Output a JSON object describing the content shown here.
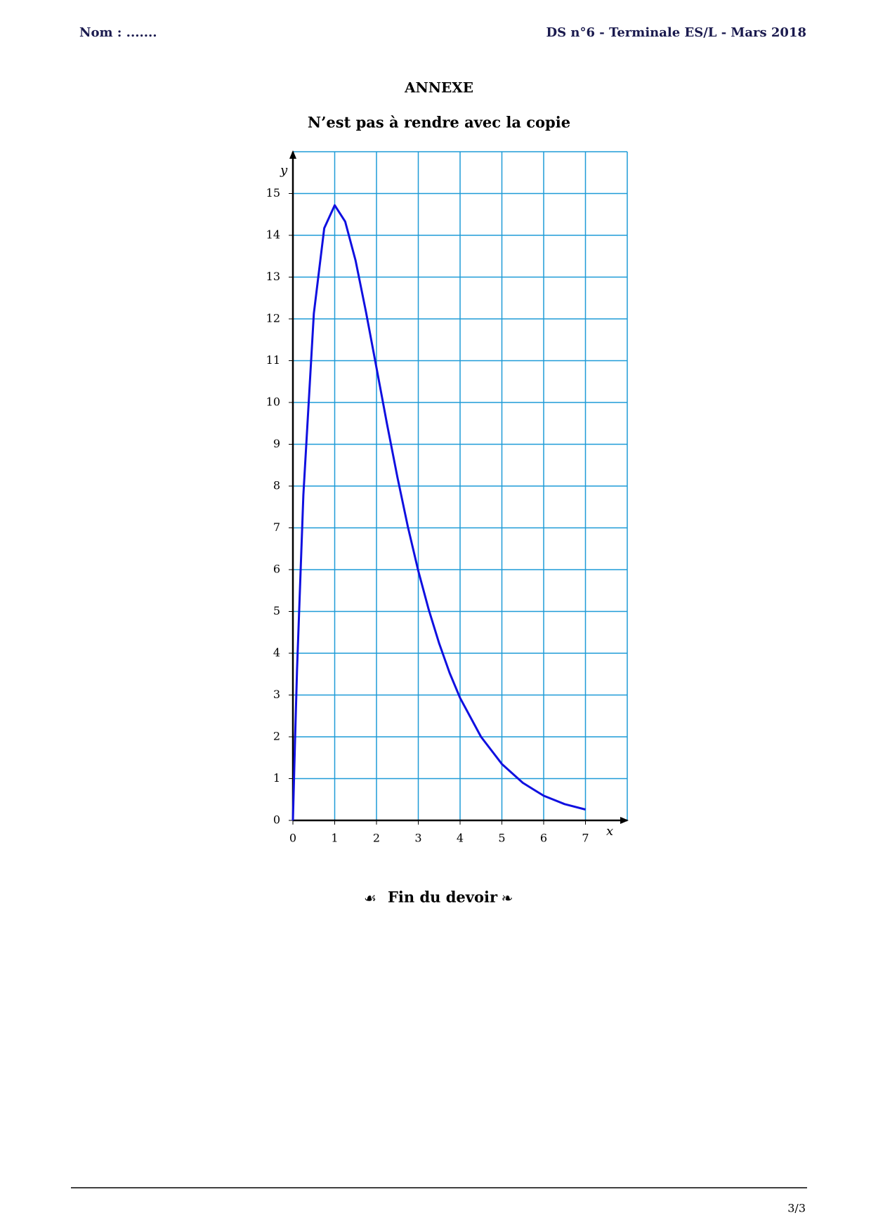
{
  "header": {
    "left": "Nom : .......",
    "right": "DS n°6  -  Terminale ES/L -  Mars 2018"
  },
  "title": "ANNEXE",
  "subtitle": "N’est pas à rendre avec la copie",
  "chart_data": {
    "type": "line",
    "x_label": "x",
    "y_label": "y",
    "xlim": [
      0,
      8
    ],
    "ylim": [
      0,
      16
    ],
    "xticks": [
      0,
      1,
      2,
      3,
      4,
      5,
      6,
      7
    ],
    "yticks": [
      0,
      1,
      2,
      3,
      4,
      5,
      6,
      7,
      8,
      9,
      10,
      11,
      12,
      13,
      14,
      15
    ],
    "grid": true,
    "grid_color": "#1f9bd7",
    "series": [
      {
        "color": "#1010e0",
        "x": [
          0,
          0.05,
          0.1,
          0.25,
          0.5,
          0.75,
          1,
          1.25,
          1.5,
          1.75,
          2,
          2.25,
          2.5,
          2.75,
          3,
          3.25,
          3.5,
          3.75,
          4,
          4.5,
          5,
          5.5,
          6,
          6.5,
          7
        ],
        "values": [
          0,
          1.9,
          3.62,
          7.79,
          12.13,
          14.17,
          14.72,
          14.33,
          13.39,
          12.16,
          10.83,
          9.49,
          8.21,
          7.03,
          5.97,
          5.04,
          4.23,
          3.53,
          2.93,
          2.0,
          1.35,
          0.9,
          0.59,
          0.39,
          0.26
        ]
      }
    ]
  },
  "footer": {
    "ornament_left": "☙",
    "text": "Fin du devoir",
    "ornament_right": "❧",
    "page": "3/3"
  }
}
